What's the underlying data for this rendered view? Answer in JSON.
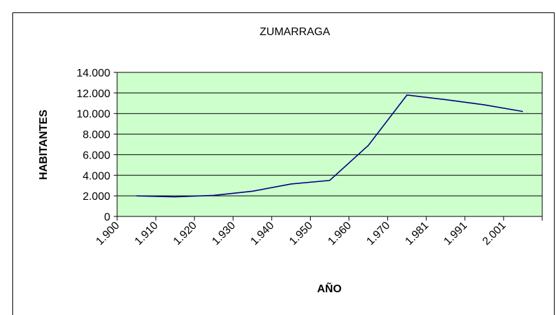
{
  "chart_data": {
    "type": "line",
    "title": "ZUMARRAGA",
    "x_label": "AÑO",
    "y_label": "HABITANTES",
    "categories": [
      "1.900",
      "1.910",
      "1.920",
      "1.930",
      "1.940",
      "1.950",
      "1.960",
      "1.970",
      "1.981",
      "1.991",
      "2.001"
    ],
    "series": [
      {
        "color": "#000080",
        "values": [
          2000,
          1900,
          2050,
          2450,
          3150,
          3500,
          6900,
          11800,
          11350,
          10850,
          10200
        ]
      }
    ],
    "ylim": [
      0,
      14000
    ],
    "yticks": [
      0,
      {
        "value": 2000,
        "label": "2.000"
      },
      {
        "value": 4000,
        "label": "4.000"
      },
      {
        "value": 6000,
        "label": "6.000"
      },
      {
        "value": 8000,
        "label": "8.000"
      },
      {
        "value": 10000,
        "label": "10.000"
      },
      {
        "value": 12000,
        "label": "12.000"
      },
      {
        "value": 14000,
        "label": "14.000"
      }
    ],
    "grid": true,
    "plot_background": "#ccffcc"
  }
}
